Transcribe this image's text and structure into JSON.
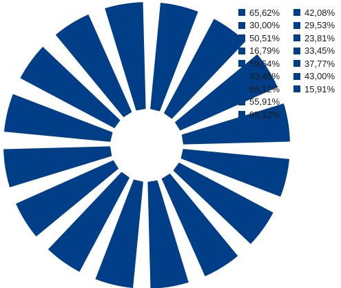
{
  "chart_data": {
    "type": "pie",
    "series_color": "#003f87",
    "legend_position": "top-right",
    "categories": [
      "65,62%",
      "30,00%",
      "50,51%",
      "16,79%",
      "59,54%",
      "43,46%",
      "65,12%",
      "55,91%",
      "95,12%",
      "42,08%",
      "29,53%",
      "23,81%",
      "33,45%",
      "37,77%",
      "43,00%",
      "15,91%"
    ],
    "values": [
      1,
      1,
      1,
      1,
      1,
      1,
      1,
      1,
      1,
      1,
      1,
      1,
      1,
      1,
      1,
      1
    ],
    "title": ""
  }
}
